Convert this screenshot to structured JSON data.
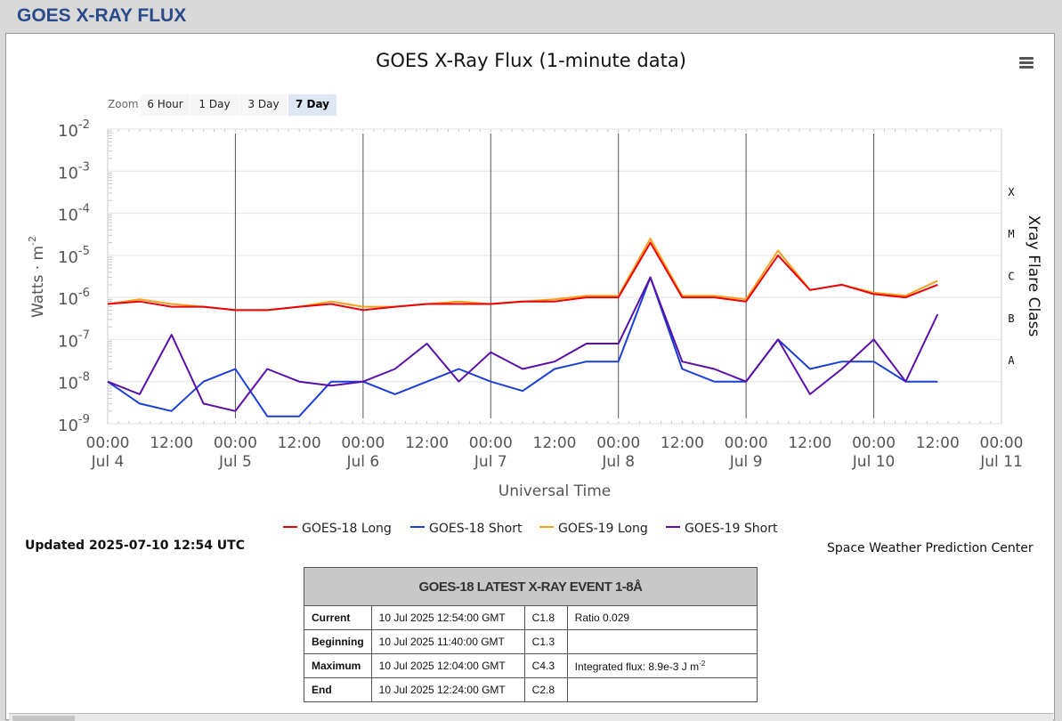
{
  "page": {
    "title": "GOES X-RAY FLUX"
  },
  "chart_data": {
    "type": "line",
    "title": "GOES X-Ray Flux (1-minute data)",
    "xlabel": "Universal Time",
    "ylabel": "Watts · m",
    "ylabel_sup": "-2",
    "y2label": "Xray Flare Class",
    "yscale": "log",
    "ylim": [
      1e-09,
      0.01
    ],
    "y_ticks": [
      {
        "base": "10",
        "exp": "-2",
        "value": 0.01
      },
      {
        "base": "10",
        "exp": "-3",
        "value": 0.001
      },
      {
        "base": "10",
        "exp": "-4",
        "value": 0.0001
      },
      {
        "base": "10",
        "exp": "-5",
        "value": 1e-05
      },
      {
        "base": "10",
        "exp": "-6",
        "value": 1e-06
      },
      {
        "base": "10",
        "exp": "-7",
        "value": 1e-07
      },
      {
        "base": "10",
        "exp": "-8",
        "value": 1e-08
      },
      {
        "base": "10",
        "exp": "-9",
        "value": 1e-09
      }
    ],
    "xlim": [
      "2025-07-04 00:00",
      "2025-07-11 00:00"
    ],
    "x_ticks": [
      {
        "time": "2025-07-04 00:00",
        "label1": "00:00",
        "label2": "Jul 4"
      },
      {
        "time": "2025-07-04 12:00",
        "label1": "12:00",
        "label2": ""
      },
      {
        "time": "2025-07-05 00:00",
        "label1": "00:00",
        "label2": "Jul 5"
      },
      {
        "time": "2025-07-05 12:00",
        "label1": "12:00",
        "label2": ""
      },
      {
        "time": "2025-07-06 00:00",
        "label1": "00:00",
        "label2": "Jul 6"
      },
      {
        "time": "2025-07-06 12:00",
        "label1": "12:00",
        "label2": ""
      },
      {
        "time": "2025-07-07 00:00",
        "label1": "00:00",
        "label2": "Jul 7"
      },
      {
        "time": "2025-07-07 12:00",
        "label1": "12:00",
        "label2": ""
      },
      {
        "time": "2025-07-08 00:00",
        "label1": "00:00",
        "label2": "Jul 8"
      },
      {
        "time": "2025-07-08 12:00",
        "label1": "12:00",
        "label2": ""
      },
      {
        "time": "2025-07-09 00:00",
        "label1": "00:00",
        "label2": "Jul 9"
      },
      {
        "time": "2025-07-09 12:00",
        "label1": "12:00",
        "label2": ""
      },
      {
        "time": "2025-07-10 00:00",
        "label1": "00:00",
        "label2": "Jul 10"
      },
      {
        "time": "2025-07-10 12:00",
        "label1": "12:00",
        "label2": ""
      },
      {
        "time": "2025-07-11 00:00",
        "label1": "00:00",
        "label2": "Jul 11"
      }
    ],
    "flare_classes": [
      {
        "label": "X",
        "value": 0.0001
      },
      {
        "label": "M",
        "value": 1e-05
      },
      {
        "label": "C",
        "value": 1e-06
      },
      {
        "label": "B",
        "value": 1e-07
      },
      {
        "label": "A",
        "value": 1e-08
      }
    ],
    "grid": true,
    "legend_position": "bottom-center",
    "series": [
      {
        "name": "GOES-18 Long",
        "color": "#e8000b",
        "points": [
          [
            "2025-07-04 00:00",
            7e-07
          ],
          [
            "2025-07-04 06:00",
            8e-07
          ],
          [
            "2025-07-04 12:00",
            6e-07
          ],
          [
            "2025-07-04 18:00",
            6e-07
          ],
          [
            "2025-07-05 00:00",
            5e-07
          ],
          [
            "2025-07-05 06:00",
            5e-07
          ],
          [
            "2025-07-05 12:00",
            6e-07
          ],
          [
            "2025-07-05 18:00",
            7e-07
          ],
          [
            "2025-07-06 00:00",
            5e-07
          ],
          [
            "2025-07-06 06:00",
            6e-07
          ],
          [
            "2025-07-06 12:00",
            7e-07
          ],
          [
            "2025-07-06 18:00",
            7e-07
          ],
          [
            "2025-07-07 00:00",
            7e-07
          ],
          [
            "2025-07-07 06:00",
            8e-07
          ],
          [
            "2025-07-07 12:00",
            8e-07
          ],
          [
            "2025-07-07 18:00",
            1e-06
          ],
          [
            "2025-07-08 00:00",
            1e-06
          ],
          [
            "2025-07-08 06:00",
            2e-05
          ],
          [
            "2025-07-08 12:00",
            1e-06
          ],
          [
            "2025-07-08 18:00",
            1e-06
          ],
          [
            "2025-07-09 00:00",
            8e-07
          ],
          [
            "2025-07-09 06:00",
            1e-05
          ],
          [
            "2025-07-09 12:00",
            1.5e-06
          ],
          [
            "2025-07-09 18:00",
            2e-06
          ],
          [
            "2025-07-10 00:00",
            1.2e-06
          ],
          [
            "2025-07-10 06:00",
            1e-06
          ],
          [
            "2025-07-10 12:00",
            2e-06
          ]
        ]
      },
      {
        "name": "GOES-18 Short",
        "color": "#1a3fd9",
        "points": [
          [
            "2025-07-04 00:00",
            1e-08
          ],
          [
            "2025-07-04 06:00",
            3e-09
          ],
          [
            "2025-07-04 12:00",
            2e-09
          ],
          [
            "2025-07-04 18:00",
            1e-08
          ],
          [
            "2025-07-05 00:00",
            2e-08
          ],
          [
            "2025-07-05 06:00",
            1.5e-09
          ],
          [
            "2025-07-05 12:00",
            1.5e-09
          ],
          [
            "2025-07-05 18:00",
            1e-08
          ],
          [
            "2025-07-06 00:00",
            1e-08
          ],
          [
            "2025-07-06 06:00",
            5e-09
          ],
          [
            "2025-07-06 12:00",
            1e-08
          ],
          [
            "2025-07-06 18:00",
            2e-08
          ],
          [
            "2025-07-07 00:00",
            1e-08
          ],
          [
            "2025-07-07 06:00",
            6e-09
          ],
          [
            "2025-07-07 12:00",
            2e-08
          ],
          [
            "2025-07-07 18:00",
            3e-08
          ],
          [
            "2025-07-08 00:00",
            3e-08
          ],
          [
            "2025-07-08 06:00",
            3e-06
          ],
          [
            "2025-07-08 12:00",
            2e-08
          ],
          [
            "2025-07-08 18:00",
            1e-08
          ],
          [
            "2025-07-09 00:00",
            1e-08
          ],
          [
            "2025-07-09 06:00",
            1e-07
          ],
          [
            "2025-07-09 12:00",
            2e-08
          ],
          [
            "2025-07-09 18:00",
            3e-08
          ],
          [
            "2025-07-10 00:00",
            3e-08
          ],
          [
            "2025-07-10 06:00",
            1e-08
          ],
          [
            "2025-07-10 12:00",
            1e-08
          ]
        ]
      },
      {
        "name": "GOES-19 Long",
        "color": "#f7a01f",
        "points": [
          [
            "2025-07-04 00:00",
            7e-07
          ],
          [
            "2025-07-04 06:00",
            9e-07
          ],
          [
            "2025-07-04 12:00",
            7e-07
          ],
          [
            "2025-07-04 18:00",
            6e-07
          ],
          [
            "2025-07-05 00:00",
            5e-07
          ],
          [
            "2025-07-05 06:00",
            5e-07
          ],
          [
            "2025-07-05 12:00",
            6e-07
          ],
          [
            "2025-07-05 18:00",
            8e-07
          ],
          [
            "2025-07-06 00:00",
            6e-07
          ],
          [
            "2025-07-06 06:00",
            6e-07
          ],
          [
            "2025-07-06 12:00",
            7e-07
          ],
          [
            "2025-07-06 18:00",
            8e-07
          ],
          [
            "2025-07-07 00:00",
            7e-07
          ],
          [
            "2025-07-07 06:00",
            8e-07
          ],
          [
            "2025-07-07 12:00",
            9e-07
          ],
          [
            "2025-07-07 18:00",
            1.1e-06
          ],
          [
            "2025-07-08 00:00",
            1.1e-06
          ],
          [
            "2025-07-08 06:00",
            2.5e-05
          ],
          [
            "2025-07-08 12:00",
            1.1e-06
          ],
          [
            "2025-07-08 18:00",
            1.1e-06
          ],
          [
            "2025-07-09 00:00",
            9e-07
          ],
          [
            "2025-07-09 06:00",
            1.3e-05
          ],
          [
            "2025-07-09 12:00",
            1.5e-06
          ],
          [
            "2025-07-09 18:00",
            2e-06
          ],
          [
            "2025-07-10 00:00",
            1.3e-06
          ],
          [
            "2025-07-10 06:00",
            1.1e-06
          ],
          [
            "2025-07-10 12:00",
            2.5e-06
          ]
        ]
      },
      {
        "name": "GOES-19 Short",
        "color": "#5a0fa8",
        "points": [
          [
            "2025-07-04 00:00",
            1e-08
          ],
          [
            "2025-07-04 06:00",
            5e-09
          ],
          [
            "2025-07-04 12:00",
            1.3e-07
          ],
          [
            "2025-07-04 18:00",
            3e-09
          ],
          [
            "2025-07-05 00:00",
            2e-09
          ],
          [
            "2025-07-05 06:00",
            2e-08
          ],
          [
            "2025-07-05 12:00",
            1e-08
          ],
          [
            "2025-07-05 18:00",
            8e-09
          ],
          [
            "2025-07-06 00:00",
            1e-08
          ],
          [
            "2025-07-06 06:00",
            2e-08
          ],
          [
            "2025-07-06 12:00",
            8e-08
          ],
          [
            "2025-07-06 18:00",
            1e-08
          ],
          [
            "2025-07-07 00:00",
            5e-08
          ],
          [
            "2025-07-07 06:00",
            2e-08
          ],
          [
            "2025-07-07 12:00",
            3e-08
          ],
          [
            "2025-07-07 18:00",
            8e-08
          ],
          [
            "2025-07-08 00:00",
            8e-08
          ],
          [
            "2025-07-08 06:00",
            3e-06
          ],
          [
            "2025-07-08 12:00",
            3e-08
          ],
          [
            "2025-07-08 18:00",
            2e-08
          ],
          [
            "2025-07-09 00:00",
            1e-08
          ],
          [
            "2025-07-09 06:00",
            1e-07
          ],
          [
            "2025-07-09 12:00",
            5e-09
          ],
          [
            "2025-07-09 18:00",
            2e-08
          ],
          [
            "2025-07-10 00:00",
            1e-07
          ],
          [
            "2025-07-10 06:00",
            1e-08
          ],
          [
            "2025-07-10 12:00",
            4e-07
          ]
        ]
      }
    ]
  },
  "zoom": {
    "label": "Zoom",
    "buttons": [
      "6 Hour",
      "1 Day",
      "3 Day",
      "7 Day"
    ],
    "active": "7 Day"
  },
  "legend": [
    {
      "label": "GOES-18 Long",
      "color": "#e8000b"
    },
    {
      "label": "GOES-18 Short",
      "color": "#1a3fd9"
    },
    {
      "label": "GOES-19 Long",
      "color": "#f7a01f"
    },
    {
      "label": "GOES-19 Short",
      "color": "#5a0fa8"
    }
  ],
  "updated": "Updated 2025-07-10 12:54 UTC",
  "credit": "Space Weather Prediction Center",
  "event_table": {
    "header": "GOES-18 LATEST X-RAY EVENT 1-8Å",
    "rows": [
      {
        "key": "Current",
        "time": "10 Jul 2025 12:54:00 GMT",
        "class": "C1.8",
        "note": "Ratio 0.029",
        "note_sup": ""
      },
      {
        "key": "Beginning",
        "time": "10 Jul 2025 11:40:00 GMT",
        "class": "C1.3",
        "note": "",
        "note_sup": ""
      },
      {
        "key": "Maximum",
        "time": "10 Jul 2025 12:04:00 GMT",
        "class": "C4.3",
        "note": "Integrated flux: 8.9e-3 J m",
        "note_sup": "-2"
      },
      {
        "key": "End",
        "time": "10 Jul 2025 12:24:00 GMT",
        "class": "C2.8",
        "note": "",
        "note_sup": ""
      }
    ]
  }
}
